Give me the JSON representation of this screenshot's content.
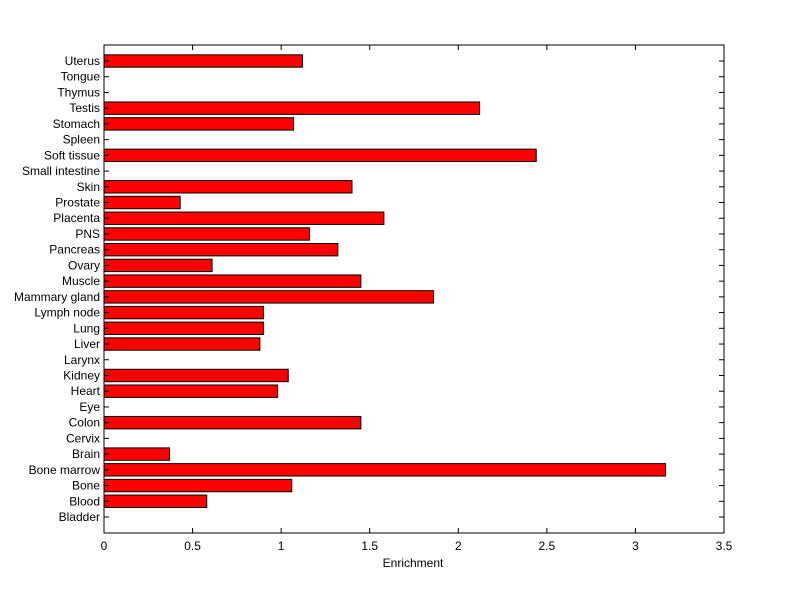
{
  "chart_data": {
    "type": "bar",
    "orientation": "horizontal",
    "categories": [
      "Bladder",
      "Blood",
      "Bone",
      "Bone marrow",
      "Brain",
      "Cervix",
      "Colon",
      "Eye",
      "Heart",
      "Kidney",
      "Larynx",
      "Liver",
      "Lung",
      "Lymph node",
      "Mammary gland",
      "Muscle",
      "Ovary",
      "Pancreas",
      "PNS",
      "Placenta",
      "Prostate",
      "Skin",
      "Small intestine",
      "Soft tissue",
      "Spleen",
      "Stomach",
      "Testis",
      "Thymus",
      "Tongue",
      "Uterus"
    ],
    "values": [
      0,
      0.58,
      1.06,
      3.17,
      0.37,
      0,
      1.45,
      0,
      0.98,
      1.04,
      0,
      0.88,
      0.9,
      0.9,
      1.86,
      1.45,
      0.61,
      1.32,
      1.16,
      1.58,
      0.43,
      1.4,
      0,
      2.44,
      0,
      1.07,
      2.12,
      0,
      0,
      1.12
    ],
    "title": "",
    "xlabel": "Enrichment",
    "ylabel": "",
    "xlim": [
      0,
      3.5
    ],
    "xticks": [
      "0",
      "0.5",
      "1",
      "1.5",
      "2",
      "2.5",
      "3",
      "3.5"
    ],
    "grid": false,
    "colors": {
      "bar": "#ff0000",
      "edge": "#000000"
    }
  }
}
